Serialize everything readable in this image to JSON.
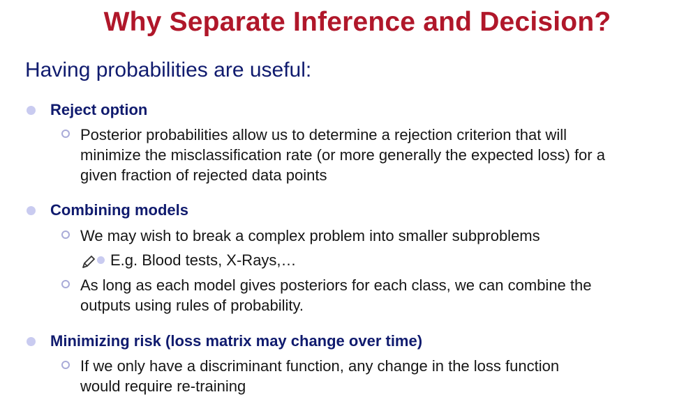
{
  "title": "Why Separate Inference and Decision?",
  "subtitle": "Having probabilities are useful:",
  "sections": [
    {
      "heading": "Reject option",
      "points": [
        "Posterior probabilities allow us to determine a rejection criterion that will minimize the misclassification rate (or more generally the expected loss) for a given fraction of rejected data points"
      ]
    },
    {
      "heading": "Combining models",
      "points": [
        "We may wish to break a complex problem into smaller subproblems",
        "As long as each model gives posteriors for each class, we can combine the outputs using rules of probability."
      ],
      "subpoint": "E.g. Blood tests, X-Rays,…"
    },
    {
      "heading": "Minimizing risk (loss matrix may change over time)",
      "points": [
        "If we only have a discriminant function, any change in the loss function would require re-training"
      ]
    }
  ],
  "icons": {
    "annotation": "pencil-icon"
  },
  "colors": {
    "title": "#b0172a",
    "heading": "#101b6e",
    "body": "#161616",
    "bullet": "#c9cbf0"
  }
}
